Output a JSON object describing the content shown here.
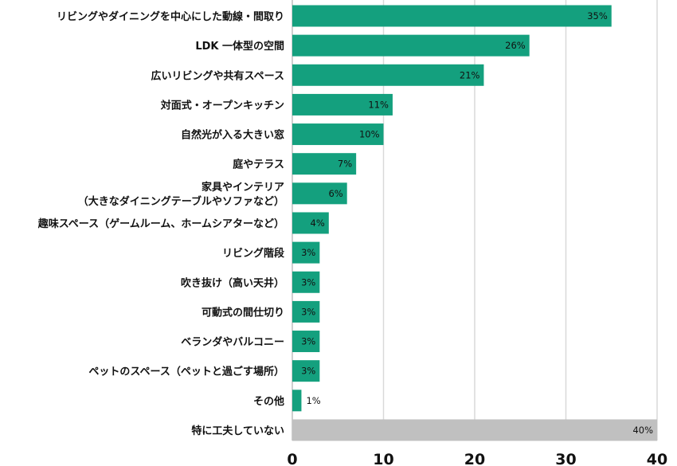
{
  "chart_data": {
    "type": "bar",
    "orientation": "horizontal",
    "title": "",
    "xlabel": "",
    "ylabel": "",
    "xlim": [
      0,
      40
    ],
    "xticks": [
      0,
      10,
      20,
      30,
      40
    ],
    "grid": "vertical",
    "colors": {
      "main": "#14a07e",
      "other": "#c0c0c0",
      "grid": "#d9d9d9"
    },
    "categories": [
      [
        "リビングやダイニングを中心にした動線・間取り"
      ],
      [
        "LDK 一体型の空間"
      ],
      [
        "広いリビングや共有スペース"
      ],
      [
        "対面式・オープンキッチン"
      ],
      [
        "自然光が入る大きい窓"
      ],
      [
        "庭やテラス"
      ],
      [
        "家具やインテリア",
        "（大きなダイニングテーブルやソファなど）"
      ],
      [
        "趣味スペース（ゲームルーム、ホームシアターなど）"
      ],
      [
        "リビング階段"
      ],
      [
        "吹き抜け（高い天井）"
      ],
      [
        "可動式の間仕切り"
      ],
      [
        "ベランダやバルコニー"
      ],
      [
        "ペットのスペース（ペットと過ごす場所）"
      ],
      [
        "その他"
      ],
      [
        "特に工夫していない"
      ]
    ],
    "values": [
      35,
      26,
      21,
      11,
      10,
      7,
      6,
      4,
      3,
      3,
      3,
      3,
      3,
      1,
      40
    ],
    "data_labels": [
      "35%",
      "26%",
      "21%",
      "11%",
      "10%",
      "7%",
      "6%",
      "4%",
      "3%",
      "3%",
      "3%",
      "3%",
      "3%",
      "1%",
      "40%"
    ],
    "highlight_gray_index": 14
  }
}
